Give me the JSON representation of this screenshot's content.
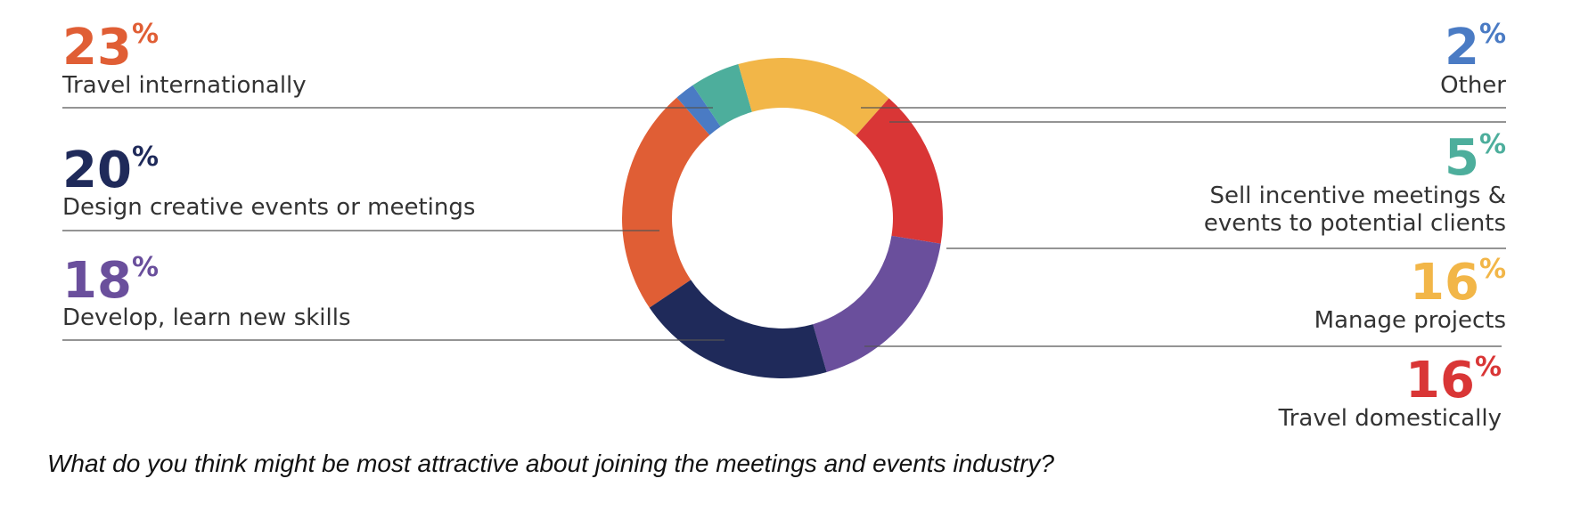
{
  "chart_data": {
    "type": "pie",
    "style": "donut",
    "question": "What do you think might be most attractive about joining the meetings and events industry?",
    "percent_sign": "%",
    "slices": [
      {
        "label": "Travel internationally",
        "value": 23,
        "color": "#E05E35",
        "side": "left"
      },
      {
        "label": "Other",
        "value": 2,
        "color": "#4A7BC4",
        "side": "right"
      },
      {
        "label": "Sell incentive meetings & events to potential clients",
        "label_lines": [
          "Sell incentive meetings &",
          "events to potential clients"
        ],
        "value": 5,
        "color": "#4DAE9C",
        "side": "right"
      },
      {
        "label": "Manage projects",
        "value": 16,
        "color": "#F2B648",
        "side": "right"
      },
      {
        "label": "Travel domestically",
        "value": 16,
        "color": "#D93636",
        "side": "right"
      },
      {
        "label": "Develop, learn new skills",
        "value": 18,
        "color": "#6A4F9C",
        "side": "left"
      },
      {
        "label": "Design creative events or meetings",
        "value": 20,
        "color": "#1F2A5A",
        "side": "left"
      }
    ]
  }
}
